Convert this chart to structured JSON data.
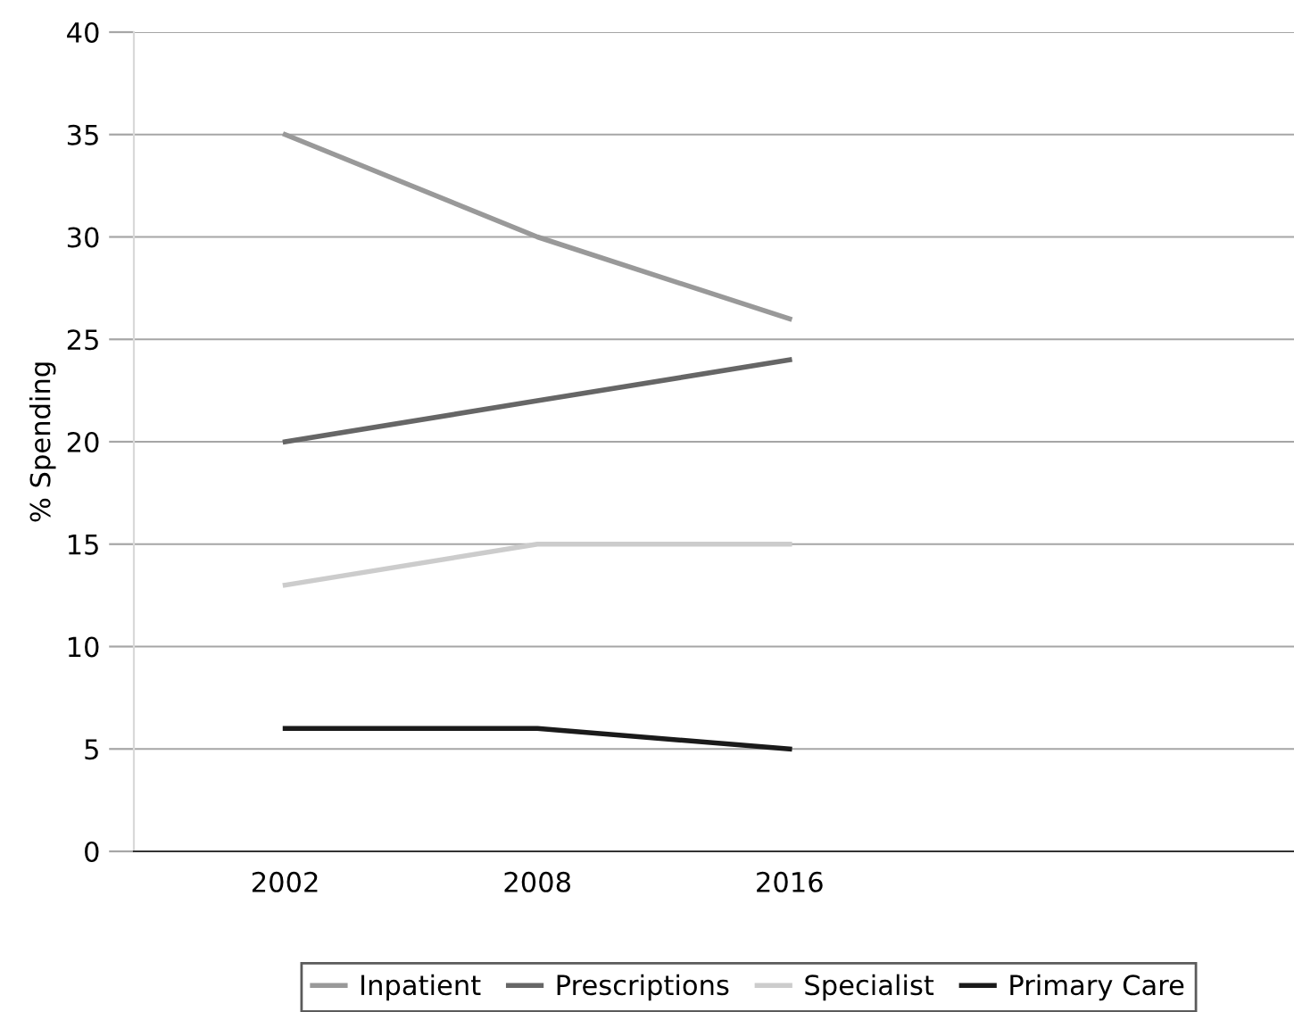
{
  "chart_data": {
    "type": "line",
    "ylabel": "% Spending",
    "categories": [
      "2002",
      "2008",
      "2016"
    ],
    "series": [
      {
        "name": "Inpatient",
        "color": "#999999",
        "values": [
          35,
          30,
          26
        ]
      },
      {
        "name": "Prescriptions",
        "color": "#666666",
        "values": [
          20,
          22,
          24
        ]
      },
      {
        "name": "Specialist",
        "color": "#cccccc",
        "values": [
          13,
          15,
          15
        ]
      },
      {
        "name": "Primary Care",
        "color": "#1a1a1a",
        "values": [
          6,
          6,
          5
        ]
      }
    ],
    "ylim": [
      0,
      40
    ],
    "yticks": [
      0,
      5,
      10,
      15,
      20,
      25,
      30,
      35,
      40
    ],
    "grid": "y",
    "legend": "bottom",
    "marker": "none",
    "line_style": "solid"
  }
}
